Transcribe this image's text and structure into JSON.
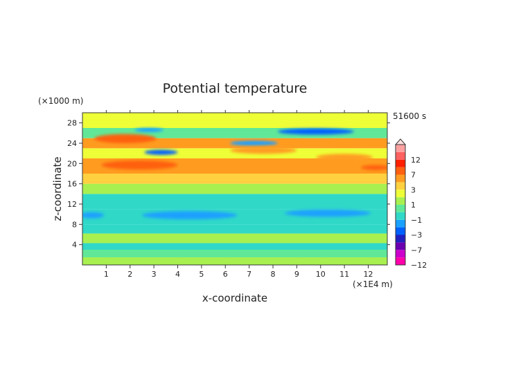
{
  "chart_data": {
    "type": "heatmap",
    "title": "Potential temperature",
    "xlabel": "x-coordinate",
    "ylabel": "z-coordinate",
    "x_unit": "(×1E4 m)",
    "y_unit": "(×1000 m)",
    "time_label": "51600 s",
    "xlim": [
      0,
      12.8
    ],
    "ylim": [
      0,
      30
    ],
    "x_ticks": [
      1,
      2,
      3,
      4,
      5,
      6,
      7,
      8,
      9,
      10,
      11,
      12
    ],
    "y_ticks": [
      4,
      8,
      12,
      16,
      20,
      24,
      28
    ],
    "colorbar": {
      "levels": [
        -12,
        -7,
        -3,
        -1,
        1,
        3,
        7,
        12
      ],
      "tick_labels": [
        "12",
        "7",
        "3",
        "1",
        "−1",
        "−3",
        "−7",
        "−12"
      ],
      "colors": [
        "#ff00aa",
        "#cc00cc",
        "#6a00b0",
        "#2020c0",
        "#0060ff",
        "#1aa0ff",
        "#30d8c8",
        "#60e898",
        "#a8f050",
        "#eeff38",
        "#ffd040",
        "#ff9c20",
        "#ff6010",
        "#ff2000",
        "#ff6060",
        "#ffa0a0"
      ]
    },
    "bands": [
      {
        "z": [
          0,
          1.5
        ],
        "value": 0.2
      },
      {
        "z": [
          1.5,
          3.0
        ],
        "value": -0.3
      },
      {
        "z": [
          3.0,
          4.3
        ],
        "value": -1.2
      },
      {
        "z": [
          4.3,
          6.2
        ],
        "value": 0.1
      },
      {
        "z": [
          6.2,
          8.0
        ],
        "value": -1.4
      },
      {
        "z": [
          8.0,
          11.0
        ],
        "value": -1.8
      },
      {
        "z": [
          11.0,
          14.0
        ],
        "value": -1.3
      },
      {
        "z": [
          14.0,
          16.0
        ],
        "value": 0.9
      },
      {
        "z": [
          16.0,
          18.0
        ],
        "value": 2.0
      },
      {
        "z": [
          18.0,
          21.0
        ],
        "value": 3.2
      },
      {
        "z": [
          21.0,
          23.0
        ],
        "value": 1.5
      },
      {
        "z": [
          23.0,
          25.0
        ],
        "value": 3.4
      },
      {
        "z": [
          25.0,
          27.0
        ],
        "value": -0.8
      },
      {
        "z": [
          27.0,
          30.0
        ],
        "value": 1.2
      }
    ],
    "blobs": [
      {
        "x": 2.8,
        "z": 26.6,
        "rx": 0.6,
        "rz": 0.4,
        "value": -2.5
      },
      {
        "x": 3.3,
        "z": 22.2,
        "rx": 0.7,
        "rz": 0.5,
        "value": -3.2
      },
      {
        "x": 7.2,
        "z": 24.0,
        "rx": 1.0,
        "rz": 0.5,
        "value": -3.0
      },
      {
        "x": 9.8,
        "z": 26.3,
        "rx": 1.6,
        "rz": 0.6,
        "value": -3.4
      },
      {
        "x": 1.8,
        "z": 24.9,
        "rx": 1.3,
        "rz": 0.9,
        "value": 5.0
      },
      {
        "x": 2.4,
        "z": 19.7,
        "rx": 1.6,
        "rz": 0.9,
        "value": 5.0
      },
      {
        "x": 7.6,
        "z": 22.6,
        "rx": 1.4,
        "rz": 0.7,
        "value": 4.5
      },
      {
        "x": 11.0,
        "z": 21.2,
        "rx": 1.2,
        "rz": 0.7,
        "value": 4.0
      },
      {
        "x": 12.3,
        "z": 19.2,
        "rx": 0.6,
        "rz": 0.5,
        "value": 5.0
      },
      {
        "x": 4.5,
        "z": 9.8,
        "rx": 2.0,
        "rz": 0.8,
        "value": -2.2
      },
      {
        "x": 10.3,
        "z": 10.2,
        "rx": 1.8,
        "rz": 0.7,
        "value": -2.5
      },
      {
        "x": 0.4,
        "z": 9.8,
        "rx": 0.5,
        "rz": 0.6,
        "value": -2.4
      }
    ]
  }
}
